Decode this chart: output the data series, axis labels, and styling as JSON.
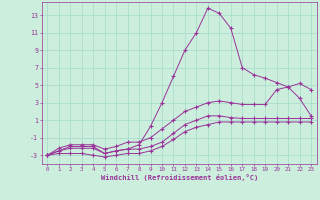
{
  "xlabel": "Windchill (Refroidissement éolien,°C)",
  "bg_color": "#cceedd",
  "grid_color": "#aaddcc",
  "line_color": "#993399",
  "xlim": [
    -0.5,
    23.5
  ],
  "ylim": [
    -4.0,
    14.5
  ],
  "yticks": [
    -3,
    -1,
    1,
    3,
    5,
    7,
    9,
    11,
    13
  ],
  "xticks": [
    0,
    1,
    2,
    3,
    4,
    5,
    6,
    7,
    8,
    9,
    10,
    11,
    12,
    13,
    14,
    15,
    16,
    17,
    18,
    19,
    20,
    21,
    22,
    23
  ],
  "hours": [
    0,
    1,
    2,
    3,
    4,
    5,
    6,
    7,
    8,
    9,
    10,
    11,
    12,
    13,
    14,
    15,
    16,
    17,
    18,
    19,
    20,
    21,
    22,
    23
  ],
  "line1": [
    -3,
    -2.5,
    -2.2,
    -2.2,
    -2.2,
    -2.8,
    -2.5,
    -2.3,
    -2.3,
    -2.0,
    -1.5,
    -0.5,
    0.5,
    1.0,
    1.5,
    1.5,
    1.3,
    1.2,
    1.2,
    1.2,
    1.2,
    1.2,
    1.2,
    1.2
  ],
  "line2": [
    -3,
    -2.8,
    -2.8,
    -2.8,
    -3.0,
    -3.2,
    -3.0,
    -2.8,
    -2.8,
    -2.5,
    -2.0,
    -1.2,
    -0.3,
    0.2,
    0.5,
    0.8,
    0.8,
    0.8,
    0.8,
    0.8,
    0.8,
    0.8,
    0.8,
    0.8
  ],
  "line3": [
    -3,
    -2.2,
    -1.8,
    -1.8,
    -1.8,
    -2.3,
    -2.0,
    -1.5,
    -1.5,
    -1.0,
    0.0,
    1.0,
    2.0,
    2.5,
    3.0,
    3.2,
    3.0,
    2.8,
    2.8,
    2.8,
    4.5,
    4.8,
    5.2,
    4.5
  ],
  "line4": [
    -3,
    -2.5,
    -2.0,
    -2.0,
    -2.0,
    -2.8,
    -2.5,
    -2.3,
    -1.8,
    0.3,
    3.0,
    6.0,
    9.0,
    11.0,
    13.8,
    13.2,
    11.5,
    7.0,
    6.2,
    5.8,
    5.3,
    4.8,
    3.5,
    1.5
  ]
}
